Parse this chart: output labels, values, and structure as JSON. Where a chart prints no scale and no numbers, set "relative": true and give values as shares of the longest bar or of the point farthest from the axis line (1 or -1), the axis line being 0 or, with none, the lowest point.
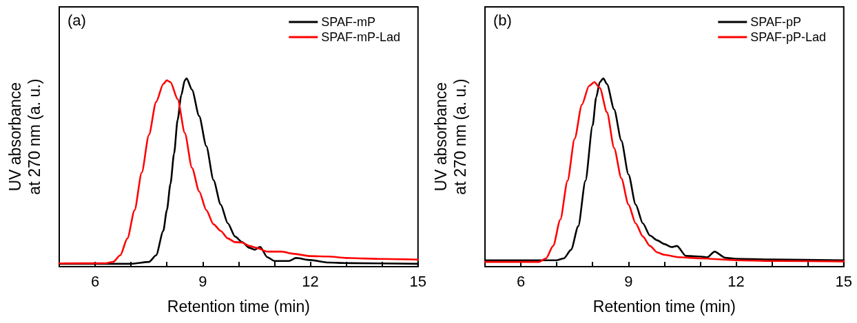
{
  "chart_data": [
    {
      "type": "line",
      "relative": true,
      "annotations": [
        "(a)"
      ],
      "xlabel": "Retention time (min)",
      "ylabel": "UV absorbance\nat 270 nm (a. u.)",
      "xlim": [
        5,
        15
      ],
      "xticks": [
        {
          "value": 5,
          "label": null
        },
        6,
        {
          "value": 7,
          "label": null
        },
        {
          "value": 8,
          "label": null
        },
        9,
        {
          "value": 10,
          "label": null
        },
        {
          "value": 11,
          "label": null
        },
        12,
        {
          "value": 13,
          "label": null
        },
        {
          "value": 14,
          "label": null
        },
        15
      ],
      "legend": "top right",
      "marker": "none",
      "line_style": "solid",
      "grid": false,
      "series": [
        {
          "name": "SPAF-mP",
          "color": "#000000",
          "x": [
            5,
            7,
            7.5,
            7.7,
            7.9,
            8.0,
            8.1,
            8.2,
            8.3,
            8.4,
            8.5,
            8.55,
            8.7,
            8.9,
            9.1,
            9.3,
            9.5,
            9.7,
            9.9,
            10.1,
            10.3,
            10.45,
            10.6,
            10.8,
            11.0,
            11.4,
            11.6,
            12.0,
            12.5,
            13,
            15
          ],
          "values": [
            0.015,
            0.015,
            0.025,
            0.06,
            0.19,
            0.3,
            0.44,
            0.6,
            0.78,
            0.91,
            0.99,
            1.0,
            0.94,
            0.8,
            0.64,
            0.46,
            0.33,
            0.23,
            0.16,
            0.13,
            0.1,
            0.09,
            0.105,
            0.05,
            0.03,
            0.03,
            0.046,
            0.035,
            0.022,
            0.019,
            0.015
          ]
        },
        {
          "name": "SPAF-mP-Lad",
          "color": "#ff0000",
          "x": [
            5,
            6.3,
            6.5,
            6.7,
            6.9,
            7.1,
            7.3,
            7.5,
            7.7,
            7.9,
            8.0,
            8.1,
            8.3,
            8.5,
            8.7,
            8.9,
            9.1,
            9.3,
            9.5,
            9.7,
            9.9,
            10.1,
            10.3,
            10.5,
            10.8,
            11.2,
            11.5,
            12,
            12.5,
            13,
            14,
            15
          ],
          "values": [
            0.0175,
            0.018,
            0.025,
            0.06,
            0.15,
            0.3,
            0.5,
            0.7,
            0.875,
            0.97,
            0.99,
            0.98,
            0.89,
            0.71,
            0.525,
            0.4,
            0.3,
            0.225,
            0.19,
            0.15,
            0.13,
            0.128,
            0.11,
            0.1,
            0.08,
            0.08,
            0.069,
            0.056,
            0.054,
            0.046,
            0.041,
            0.0375
          ]
        }
      ]
    },
    {
      "type": "line",
      "relative": true,
      "annotations": [
        "(b)"
      ],
      "xlabel": "Retention time (min)",
      "ylabel": "UV absorbance\nat 270 nm (a. u.)",
      "xlim": [
        5,
        15
      ],
      "xticks": [
        {
          "value": 5,
          "label": null
        },
        6,
        {
          "value": 7,
          "label": null
        },
        {
          "value": 8,
          "label": null
        },
        9,
        {
          "value": 10,
          "label": null
        },
        {
          "value": 11,
          "label": null
        },
        12,
        {
          "value": 13,
          "label": null
        },
        {
          "value": 14,
          "label": null
        },
        15
      ],
      "legend": "top right",
      "marker": "none",
      "line_style": "solid",
      "grid": false,
      "series": [
        {
          "name": "SPAF-pP",
          "color": "#000000",
          "x": [
            5,
            7.0,
            7.2,
            7.4,
            7.6,
            7.8,
            8.0,
            8.1,
            8.2,
            8.3,
            8.4,
            8.6,
            8.8,
            9.0,
            9.2,
            9.4,
            9.6,
            9.8,
            10.0,
            10.2,
            10.35,
            10.6,
            11.0,
            11.2,
            11.4,
            11.7,
            12,
            13,
            15
          ],
          "values": [
            0.034,
            0.034,
            0.044,
            0.09,
            0.215,
            0.456,
            0.75,
            0.9,
            0.98,
            1.0,
            0.97,
            0.835,
            0.67,
            0.49,
            0.33,
            0.23,
            0.165,
            0.14,
            0.12,
            0.104,
            0.11,
            0.057,
            0.054,
            0.05,
            0.08,
            0.047,
            0.042,
            0.038,
            0.034
          ]
        },
        {
          "name": "SPAF-pP-Lad",
          "color": "#ff0000",
          "x": [
            5,
            6.5,
            6.7,
            6.9,
            7.1,
            7.3,
            7.5,
            7.7,
            7.9,
            8.05,
            8.2,
            8.4,
            8.6,
            8.8,
            9.0,
            9.2,
            9.4,
            9.6,
            9.8,
            10.0,
            10.4,
            11,
            12,
            13,
            15
          ],
          "values": [
            0.025,
            0.025,
            0.044,
            0.11,
            0.25,
            0.456,
            0.68,
            0.86,
            0.96,
            0.98,
            0.95,
            0.82,
            0.63,
            0.47,
            0.33,
            0.23,
            0.16,
            0.11,
            0.076,
            0.063,
            0.05,
            0.044,
            0.034,
            0.03,
            0.028
          ]
        }
      ]
    }
  ]
}
